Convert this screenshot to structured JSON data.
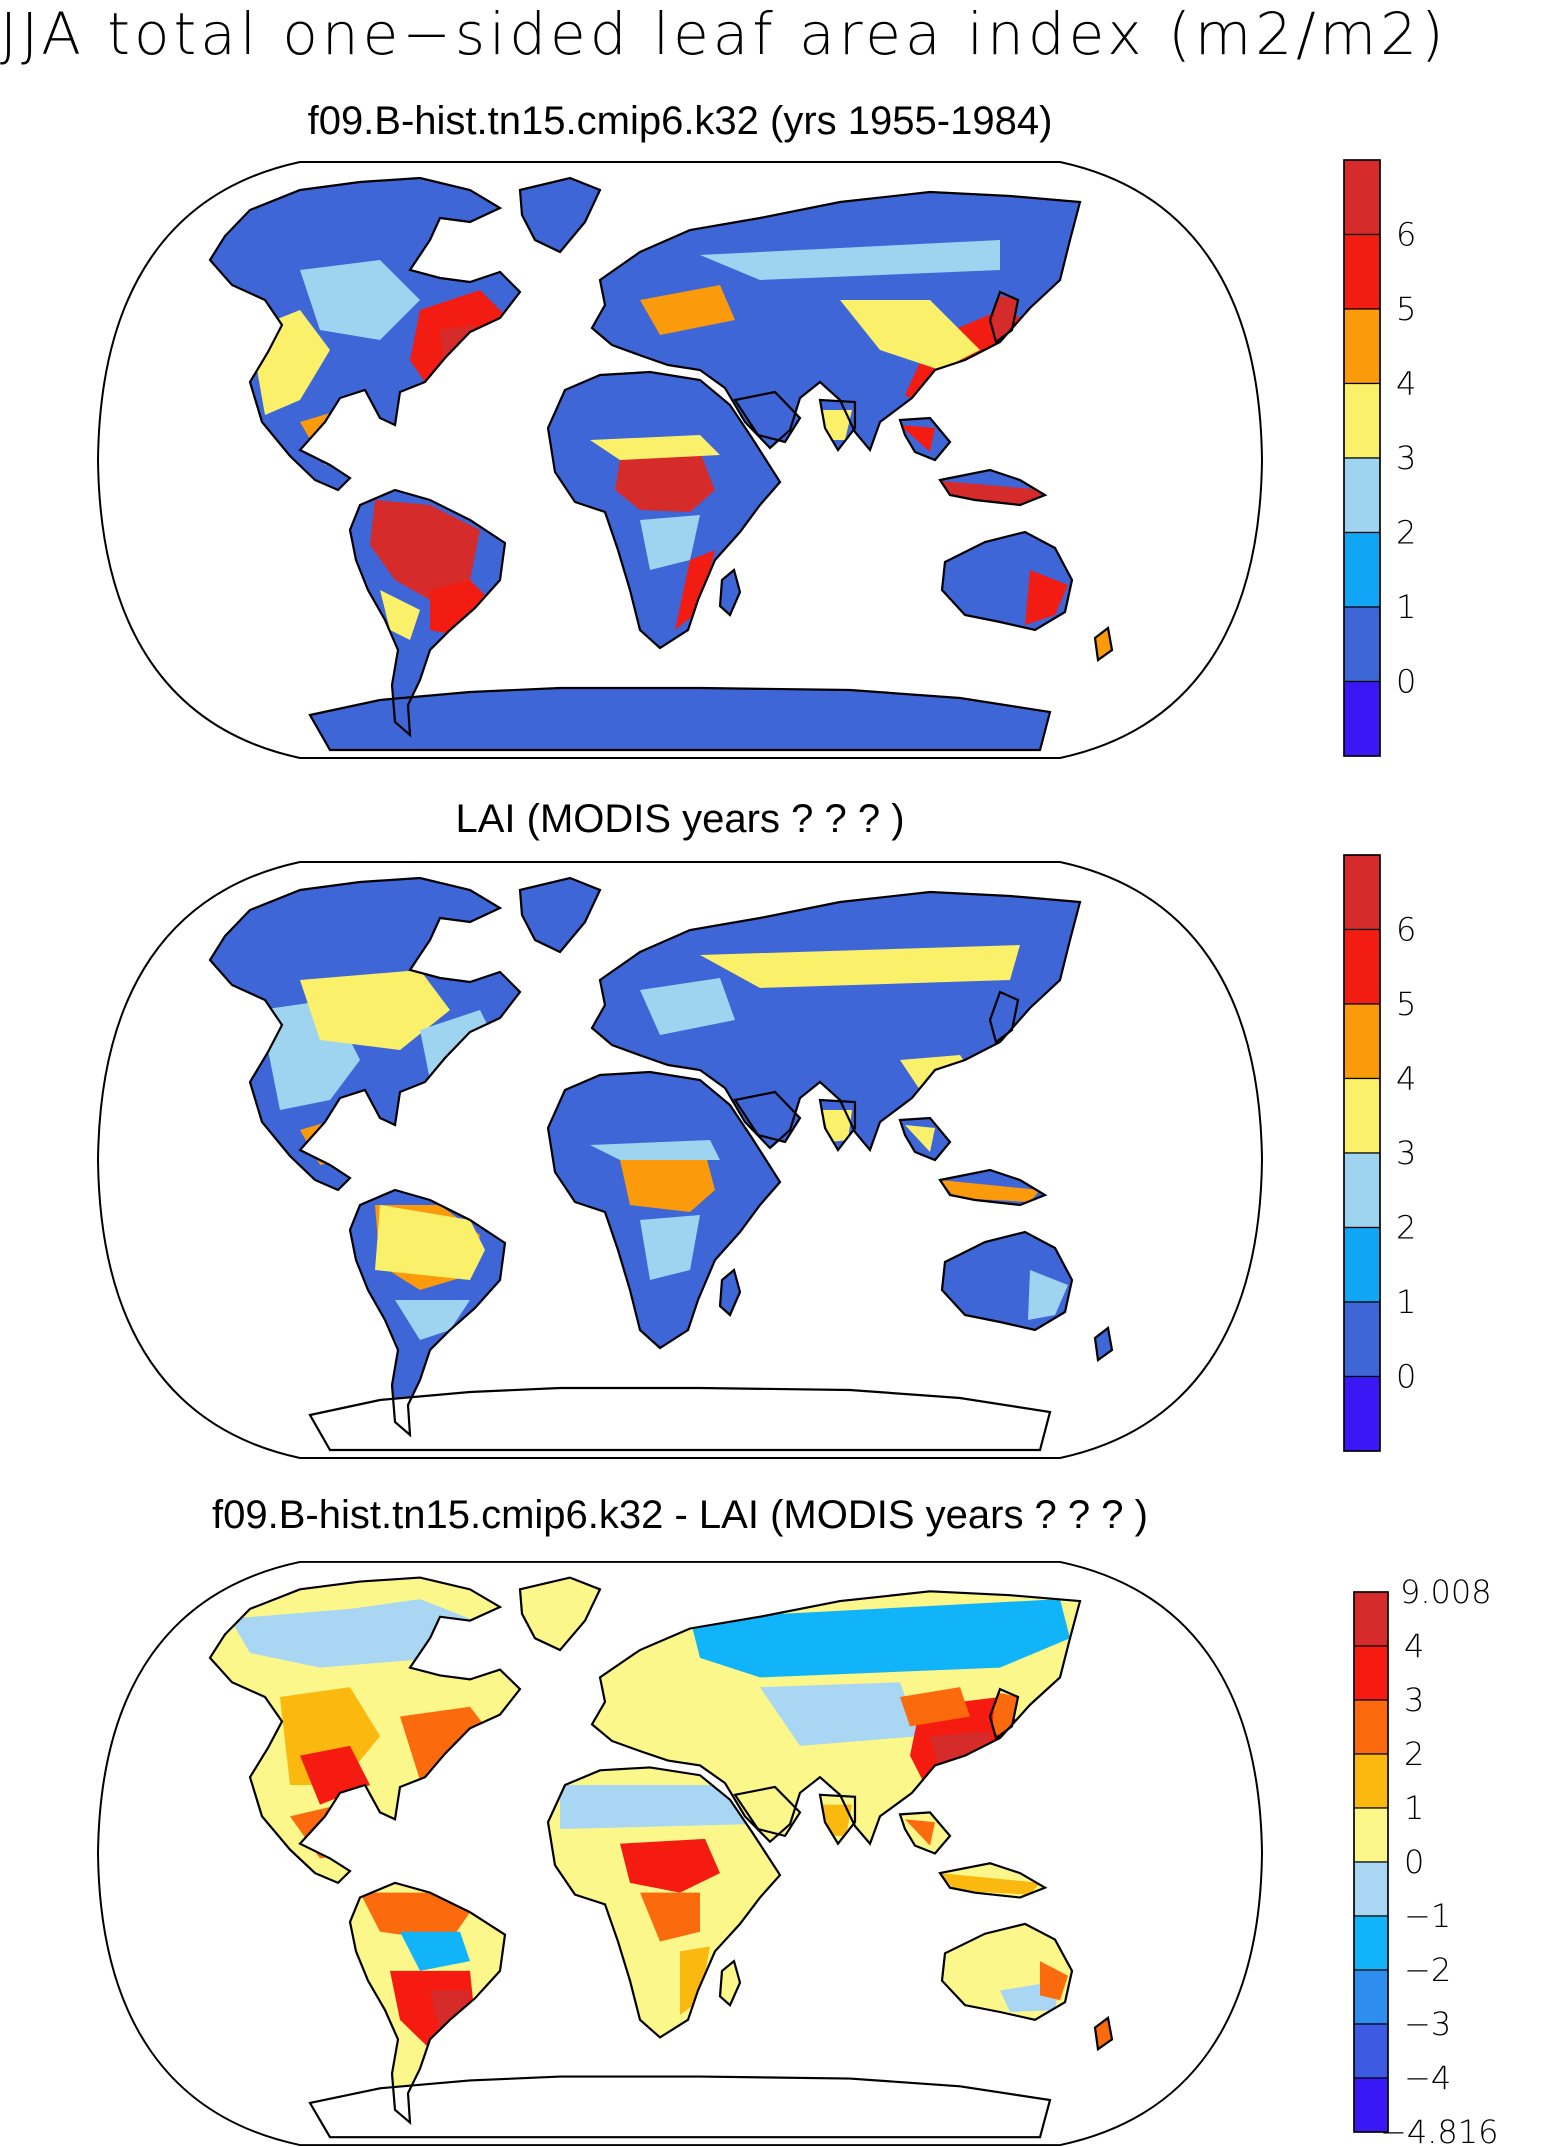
{
  "figure": {
    "title": "JJA total one−sided leaf area index (m2/m2)"
  },
  "panels": [
    {
      "title": "f09.B-hist.tn15.cmip6.k32 (yrs 1955-1984)",
      "colorbar": {
        "labels": [
          "6",
          "5",
          "4",
          "3",
          "2",
          "1",
          "0"
        ],
        "colors": [
          "#d62b2b",
          "#f21c12",
          "#fb9a0a",
          "#fbf06a",
          "#9fd4f0",
          "#11a6f5",
          "#3f66d7",
          "#3b17f5"
        ],
        "end_labels": [
          "",
          ""
        ]
      }
    },
    {
      "title": "LAI (MODIS years ? ? ? )",
      "colorbar": {
        "labels": [
          "6",
          "5",
          "4",
          "3",
          "2",
          "1",
          "0"
        ],
        "colors": [
          "#d62b2b",
          "#f21c12",
          "#fb9a0a",
          "#fbf06a",
          "#9fd4f0",
          "#11a6f5",
          "#3f66d7",
          "#3b17f5"
        ],
        "end_labels": [
          "",
          ""
        ]
      }
    },
    {
      "title": "f09.B-hist.tn15.cmip6.k32 - LAI (MODIS years ? ? ? )",
      "colorbar": {
        "labels": [
          "4",
          "3",
          "2",
          "1",
          "0",
          "−1",
          "−2",
          "−3",
          "−4"
        ],
        "colors": [
          "#d62b2b",
          "#f51b10",
          "#fb6a0c",
          "#fbb80e",
          "#fbf78a",
          "#a9d6f3",
          "#11b4f8",
          "#2d8ef0",
          "#3c5ae2",
          "#3a17f5"
        ],
        "end_labels": [
          "9.008",
          "−4.816"
        ]
      }
    }
  ],
  "map_colors": {
    "ocean": "#ffffff",
    "coast": "#000000",
    "land_base_abs": "#3f66d7",
    "land_base_diff": "#fbf78a"
  }
}
